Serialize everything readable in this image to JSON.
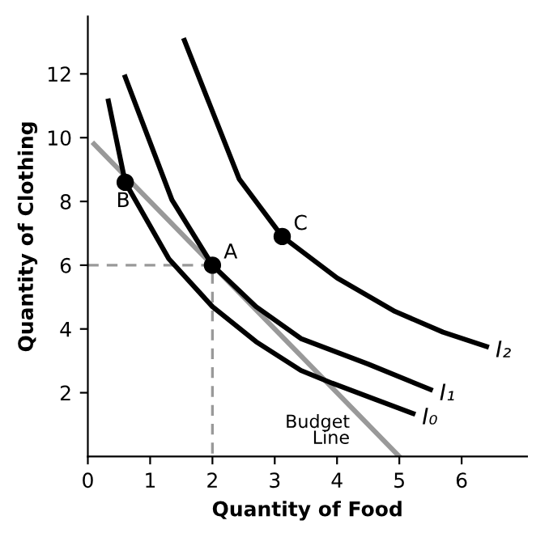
{
  "chart_data": {
    "type": "line",
    "xlabel": "Quantity of Food",
    "ylabel": "Quantity of Clothing",
    "xlim": [
      0,
      7.05
    ],
    "ylim": [
      0,
      13.8
    ],
    "xticks": [
      0,
      1,
      2,
      3,
      4,
      5,
      6
    ],
    "yticks": [
      2,
      4,
      6,
      8,
      10,
      12
    ],
    "grid": false,
    "legend": false,
    "marker": "none",
    "series": [
      {
        "name": "Budget\nLine",
        "color": "#999999",
        "x": [
          0.1,
          5
        ],
        "values": [
          9.8,
          0
        ]
      },
      {
        "color": "#999999",
        "line_style": "dashed",
        "x": [
          0,
          2,
          2
        ],
        "values": [
          6,
          6,
          0
        ]
      },
      {
        "name": "I₀",
        "color": "#000000",
        "x": [
          0.33,
          0.6,
          1.3,
          2,
          2.7,
          3.42,
          3.92,
          4.6,
          5.22
        ],
        "values": [
          11.15,
          8.6,
          6.2,
          4.7,
          3.6,
          2.7,
          2.3,
          1.8,
          1.35
        ]
      },
      {
        "name": "I₁",
        "color": "#000000",
        "x": [
          0.6,
          1.35,
          2,
          2.7,
          3.42,
          4.5,
          5.5
        ],
        "values": [
          11.9,
          8.05,
          6,
          4.7,
          3.7,
          2.9,
          2.1
        ]
      },
      {
        "name": "I₂",
        "color": "#000000",
        "x": [
          1.55,
          2.43,
          3.12,
          4.0,
          4.93,
          5.7,
          6.4
        ],
        "values": [
          13.05,
          8.7,
          6.9,
          5.6,
          4.55,
          3.9,
          3.45
        ]
      },
      {
        "type": "scatter",
        "color": "#000000",
        "marker": "circle",
        "x": [
          0.6,
          2,
          3.12
        ],
        "values": [
          8.6,
          6,
          6.9
        ]
      }
    ],
    "annotations": [
      {
        "text": "A",
        "x": 2,
        "y": 6
      },
      {
        "text": "B",
        "x": 0.6,
        "y": 8.6
      },
      {
        "text": "C",
        "x": 3.12,
        "y": 6.9
      }
    ]
  }
}
